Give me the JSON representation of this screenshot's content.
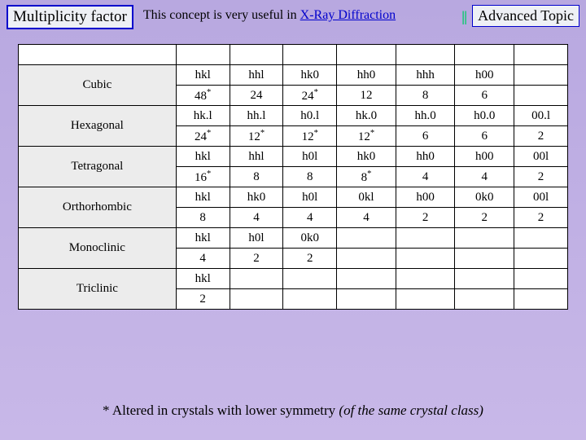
{
  "header": {
    "title": "Multiplicity factor",
    "subtitle_prefix": "This concept is very useful in ",
    "subtitle_link": "X-Ray Diffraction",
    "advanced": "Advanced Topic"
  },
  "table": {
    "empty_top_row": true,
    "col_count": 8,
    "rows": [
      {
        "label": "Cubic",
        "top": [
          "hkl",
          "hhl",
          "hk0",
          "hh0",
          "hhh",
          "h00",
          ""
        ],
        "bot": [
          "48*",
          "24",
          "24*",
          "12",
          "8",
          "6",
          ""
        ]
      },
      {
        "label": "Hexagonal",
        "top": [
          "hk.l",
          "hh.l",
          "h0.l",
          "hk.0",
          "hh.0",
          "h0.0",
          "00.l"
        ],
        "bot": [
          "24*",
          "12*",
          "12*",
          "12*",
          "6",
          "6",
          "2"
        ]
      },
      {
        "label": "Tetragonal",
        "top": [
          "hkl",
          "hhl",
          "h0l",
          "hk0",
          "hh0",
          "h00",
          "00l"
        ],
        "bot": [
          "16*",
          "8",
          "8",
          "8*",
          "4",
          "4",
          "2"
        ]
      },
      {
        "label": "Orthorhombic",
        "top": [
          "hkl",
          "hk0",
          "h0l",
          "0kl",
          "h00",
          "0k0",
          "00l"
        ],
        "bot": [
          "8",
          "4",
          "4",
          "4",
          "2",
          "2",
          "2"
        ]
      },
      {
        "label": "Monoclinic",
        "top": [
          "hkl",
          "h0l",
          "0k0",
          "",
          "",
          "",
          ""
        ],
        "bot": [
          "4",
          "2",
          "2",
          "",
          "",
          "",
          ""
        ]
      },
      {
        "label": "Triclinic",
        "top": [
          "hkl",
          "",
          "",
          "",
          "",
          "",
          ""
        ],
        "bot": [
          "2",
          "",
          "",
          "",
          "",
          "",
          ""
        ]
      }
    ]
  },
  "footnote": {
    "main": "* Altered in crystals with lower symmetry ",
    "italic": "(of the same crystal class)"
  },
  "colors": {
    "bg_top": "#b8a8e0",
    "bg_bot": "#c8b8e8",
    "border": "#0000cc",
    "box_bg": "#eef0f5",
    "row_hdr_bg": "#ececec",
    "link": "#0000cc",
    "adv_mark": "#00cc66"
  }
}
